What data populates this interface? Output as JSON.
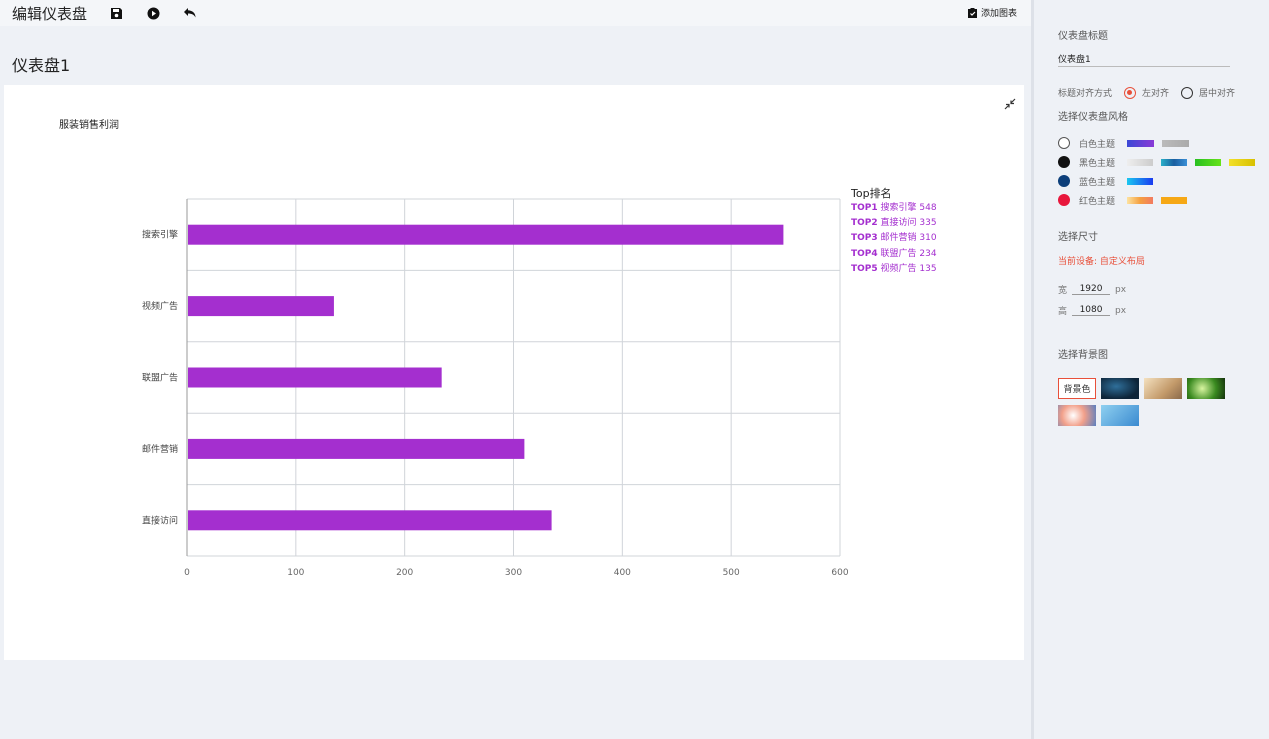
{
  "toolbar": {
    "title": "编辑仪表盘",
    "add_chart": "添加图表",
    "icons": [
      "save-icon",
      "play-icon",
      "undo-icon",
      "clipboard-icon"
    ]
  },
  "dashboard": {
    "title": "仪表盘1"
  },
  "chart_data": {
    "type": "bar",
    "orientation": "horizontal",
    "title": "服装销售利润",
    "categories": [
      "搜索引擎",
      "视频广告",
      "联盟广告",
      "邮件营销",
      "直接访问"
    ],
    "values": [
      548,
      135,
      234,
      310,
      335
    ],
    "xlim": [
      0,
      600
    ],
    "xticks": [
      "0",
      "100",
      "200",
      "300",
      "400",
      "500",
      "600"
    ],
    "bar_color": "#a42fcf",
    "grid": true,
    "legend": {
      "title": "Top排名",
      "placement": "right",
      "items": [
        {
          "rank": "TOP1",
          "label": "搜索引擎 548"
        },
        {
          "rank": "TOP2",
          "label": "直接访问 335"
        },
        {
          "rank": "TOP3",
          "label": "邮件营销 310"
        },
        {
          "rank": "TOP4",
          "label": "联盟广告 234"
        },
        {
          "rank": "TOP5",
          "label": "视频广告 135"
        }
      ]
    }
  },
  "panel": {
    "title_label": "仪表盘标题",
    "title_value": "仪表盘1",
    "align_label": "标题对齐方式",
    "align_options": [
      "左对齐",
      "居中对齐"
    ],
    "align_selected": "左对齐",
    "style_label": "选择仪表盘风格",
    "themes": [
      {
        "name": "白色主题",
        "dot": "#ffffff"
      },
      {
        "name": "黑色主题",
        "dot": "#111111"
      },
      {
        "name": "蓝色主题",
        "dot": "#0d3f7a"
      },
      {
        "name": "红色主题",
        "dot": "#e8173c"
      }
    ],
    "size_label": "选择尺寸",
    "device_text": "当前设备: 自定义布局",
    "width_label": "宽",
    "width_value": "1920",
    "height_label": "高",
    "height_value": "1080",
    "unit": "px",
    "bg_label": "选择背景图",
    "bg_color_label": "背景色"
  },
  "colors": {
    "accent": "#e8503a",
    "bar": "#a42fcf"
  }
}
